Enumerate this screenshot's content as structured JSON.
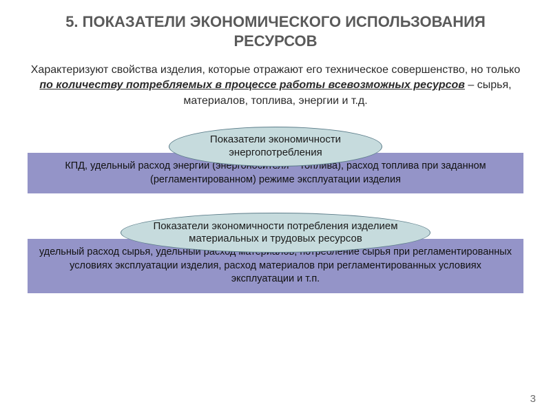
{
  "title": "5. ПОКАЗАТЕЛИ ЭКОНОМИЧЕСКОГО ИСПОЛЬЗОВАНИЯ РЕСУРСОВ",
  "intro": {
    "part1": "Характеризуют свойства изделия, которые отражают его техническое совершенство, но только ",
    "emph": "по количеству потребляемых в процессе работы всевозможных ресурсов",
    "part2": " – сырья, материалов, топлива, энергии и т.д."
  },
  "block1": {
    "ellipse": "Показатели экономичности энергопотребления",
    "bar": "КПД, удельный расход энергии (энергоносителя – топлива), расход топлива при заданном (регламентированном) режиме эксплуатации изделия"
  },
  "block2": {
    "ellipse": "Показатели экономичности потребления изделием материальных и трудовых ресурсов",
    "bar": "удельный расход сырья, удельный расход материалов, потребление сырья при регламентированных условиях эксплуатации изделия, расход материалов при регламентированных условиях эксплуатации и т.п."
  },
  "pagenum": "3",
  "colors": {
    "ellipse_fill": "#c6dbdd",
    "ellipse_border": "#5b7c89",
    "bar_fill": "#9494c8",
    "title_color": "#5a5a5a",
    "text_color": "#2a2a2a",
    "background": "#ffffff"
  },
  "fonts": {
    "title_size_pt": 17,
    "intro_size_pt": 12,
    "ellipse_size_pt": 11,
    "bar_size_pt": 11
  }
}
